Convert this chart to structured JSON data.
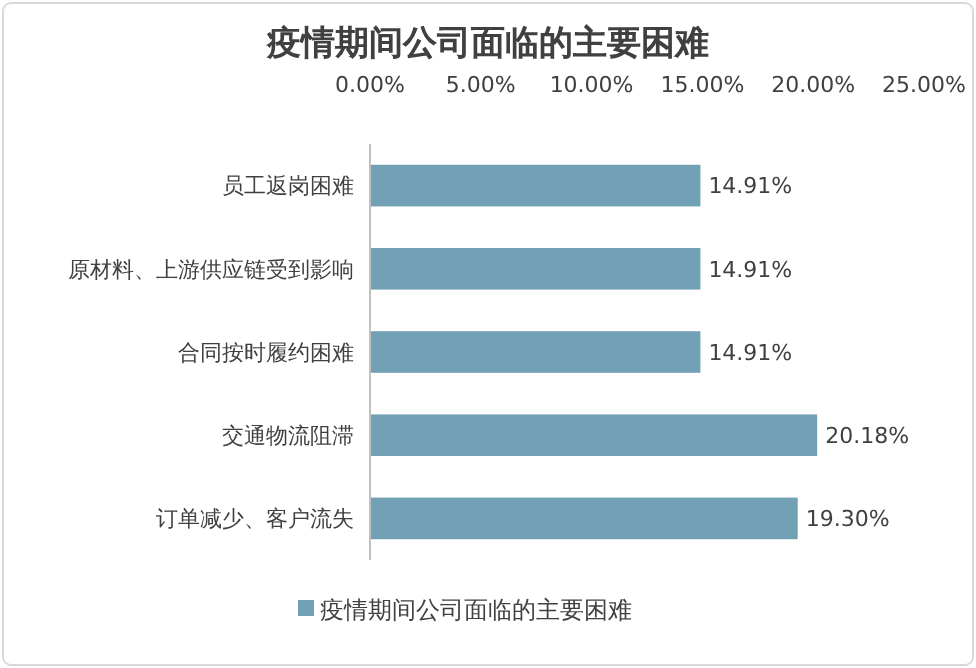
{
  "chart_data": {
    "type": "bar",
    "orientation": "horizontal",
    "title": "疫情期间公司面临的主要困难",
    "categories": [
      "员工返岗困难",
      "原材料、上游供应链受到影响",
      "合同按时履约困难",
      "交通物流阻滞",
      "订单减少、客户流失"
    ],
    "series": [
      {
        "name": "疫情期间公司面临的主要困难",
        "color": "#72a0b4",
        "values": [
          14.91,
          14.91,
          14.91,
          20.18,
          19.3
        ],
        "value_labels": [
          "14.91%",
          "14.91%",
          "14.91%",
          "20.18%",
          "19.30%"
        ]
      }
    ],
    "xlim": [
      0,
      25
    ],
    "xticks": [
      {
        "value": 0,
        "label": "0.00%"
      },
      {
        "value": 5,
        "label": "5.00%"
      },
      {
        "value": 10,
        "label": "10.00%"
      },
      {
        "value": 15,
        "label": "15.00%"
      },
      {
        "value": 20,
        "label": "20.00%"
      },
      {
        "value": 25,
        "label": "25.00%"
      }
    ],
    "grid": false,
    "legend": "bottom"
  }
}
